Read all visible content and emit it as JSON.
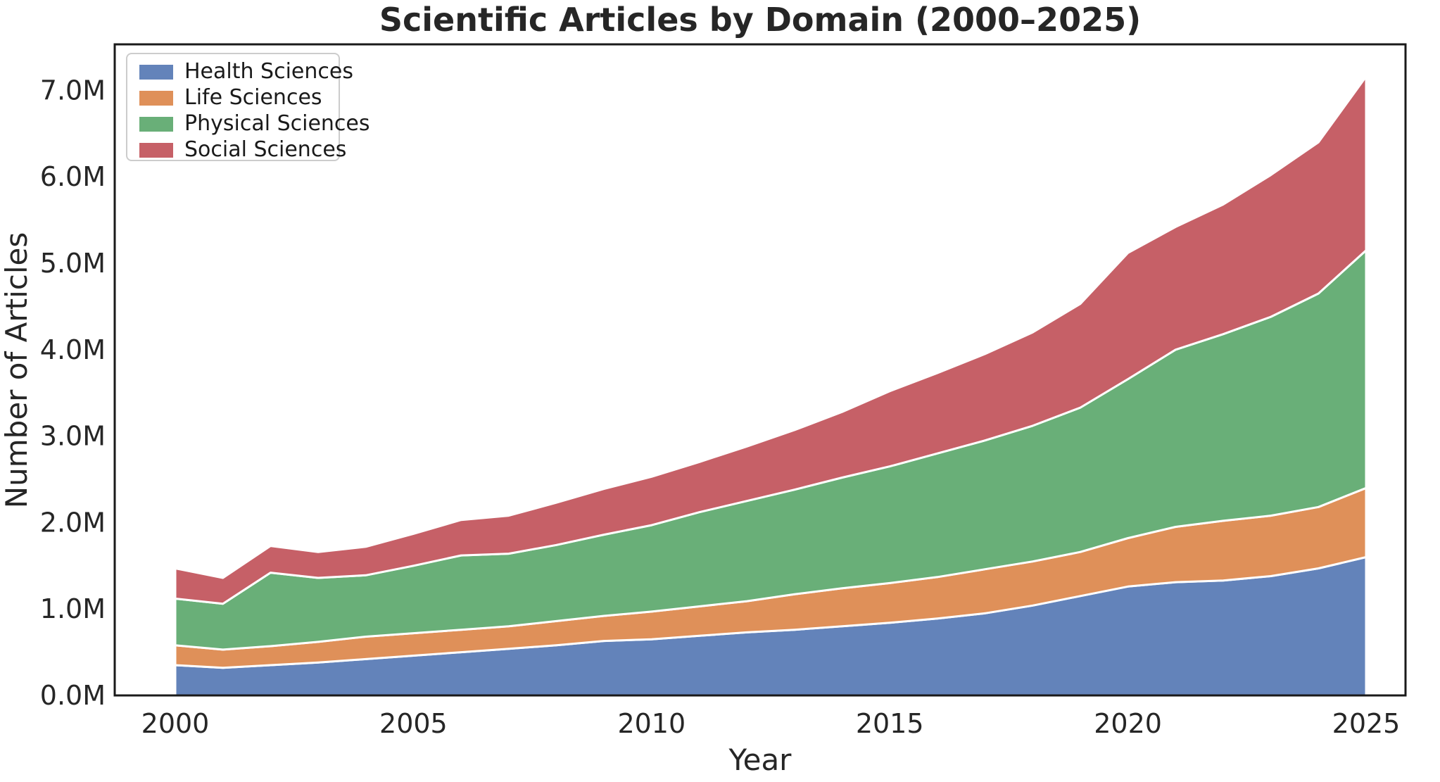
{
  "figure": {
    "title": "Scientific Articles by Domain (2000–2025)",
    "background": "#ffffff",
    "title_color": "#262626",
    "axis_color": "#1a1a1a",
    "tick_color": "#262626"
  },
  "chart_data": {
    "type": "area",
    "stacked": true,
    "title": "Scientific Articles by Domain (2000–2025)",
    "xlabel": "Year",
    "ylabel": "Number of Articles",
    "x": [
      2000,
      2001,
      2002,
      2003,
      2004,
      2005,
      2006,
      2007,
      2008,
      2009,
      2010,
      2011,
      2012,
      2013,
      2014,
      2015,
      2016,
      2017,
      2018,
      2019,
      2020,
      2021,
      2022,
      2023,
      2024,
      2025
    ],
    "series": [
      {
        "name": "Health Sciences",
        "color": "#6383BA",
        "values": [
          0.35,
          0.32,
          0.35,
          0.38,
          0.42,
          0.46,
          0.5,
          0.54,
          0.58,
          0.63,
          0.65,
          0.69,
          0.73,
          0.76,
          0.8,
          0.84,
          0.89,
          0.95,
          1.04,
          1.15,
          1.26,
          1.31,
          1.33,
          1.38,
          1.47,
          1.6
        ]
      },
      {
        "name": "Life Sciences",
        "color": "#DF9059",
        "values": [
          0.23,
          0.21,
          0.22,
          0.24,
          0.26,
          0.26,
          0.26,
          0.26,
          0.28,
          0.29,
          0.32,
          0.34,
          0.36,
          0.41,
          0.44,
          0.46,
          0.48,
          0.51,
          0.51,
          0.51,
          0.56,
          0.64,
          0.69,
          0.7,
          0.71,
          0.8
        ]
      },
      {
        "name": "Physical Sciences",
        "color": "#69AF78",
        "values": [
          0.54,
          0.53,
          0.85,
          0.74,
          0.71,
          0.78,
          0.86,
          0.84,
          0.88,
          0.94,
          1.0,
          1.09,
          1.16,
          1.21,
          1.28,
          1.35,
          1.43,
          1.49,
          1.57,
          1.67,
          1.84,
          2.05,
          2.16,
          2.3,
          2.47,
          2.75
        ]
      },
      {
        "name": "Social Sciences",
        "color": "#C66067",
        "values": [
          0.35,
          0.3,
          0.31,
          0.3,
          0.33,
          0.37,
          0.41,
          0.44,
          0.49,
          0.53,
          0.56,
          0.58,
          0.63,
          0.69,
          0.76,
          0.87,
          0.93,
          1.0,
          1.08,
          1.2,
          1.46,
          1.42,
          1.5,
          1.64,
          1.75,
          2.01
        ]
      }
    ],
    "x_ticks": [
      2000,
      2005,
      2010,
      2015,
      2020,
      2025
    ],
    "y_ticks": [
      0,
      1,
      2,
      3,
      4,
      5,
      6,
      7
    ],
    "y_tick_labels": [
      "0.0M",
      "1.0M",
      "2.0M",
      "3.0M",
      "4.0M",
      "5.0M",
      "6.0M",
      "7.0M"
    ],
    "xlim": [
      2000,
      2025
    ],
    "ylim": [
      0,
      7.53
    ],
    "grid": false,
    "legend_position": "upper left",
    "separator_color": "#ffffff"
  }
}
